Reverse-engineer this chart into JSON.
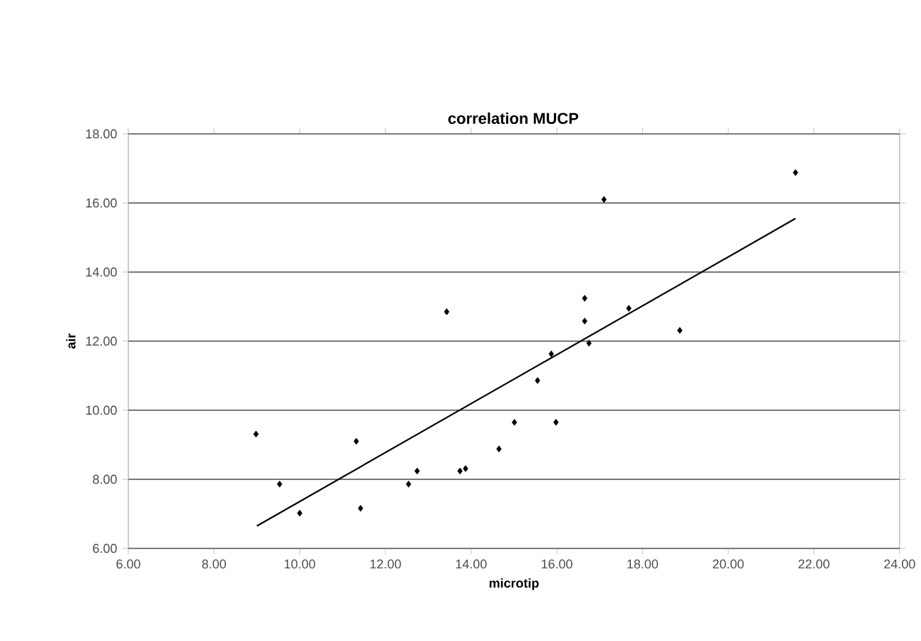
{
  "chart_data": {
    "type": "scatter",
    "title": "correlation MUCP",
    "xlabel": "microtip",
    "ylabel": "air",
    "xlim": [
      6,
      24
    ],
    "xticks": [
      {
        "value": 6,
        "label": "6.00"
      },
      {
        "value": 8,
        "label": "8.00"
      },
      {
        "value": 10,
        "label": "10.00"
      },
      {
        "value": 12,
        "label": "12.00"
      },
      {
        "value": 14,
        "label": "14.00"
      },
      {
        "value": 16,
        "label": "16.00"
      },
      {
        "value": 18,
        "label": "18.00"
      },
      {
        "value": 20,
        "label": "20.00"
      },
      {
        "value": 22,
        "label": "22.00"
      },
      {
        "value": 24,
        "label": "24.00"
      }
    ],
    "ylim": [
      6,
      18
    ],
    "yticks": [
      {
        "value": 6,
        "label": "6.00"
      },
      {
        "value": 8,
        "label": "8.00"
      },
      {
        "value": 10,
        "label": "10.00"
      },
      {
        "value": 12,
        "label": "12.00"
      },
      {
        "value": 14,
        "label": "14.00"
      },
      {
        "value": 16,
        "label": "16.00"
      },
      {
        "value": 18,
        "label": "18.00"
      }
    ],
    "grid": "y",
    "series": [
      {
        "marker": "diamond",
        "color": "#000000",
        "x": [
          8.98,
          9.53,
          10.0,
          11.32,
          11.42,
          12.54,
          12.74,
          13.43,
          13.74,
          13.87,
          14.65,
          15.01,
          15.55,
          15.87,
          15.98,
          16.65,
          16.65,
          16.75,
          17.1,
          17.68,
          18.87,
          21.57
        ],
        "values": [
          9.31,
          7.86,
          7.02,
          9.1,
          7.16,
          7.86,
          8.24,
          12.85,
          8.24,
          8.31,
          8.88,
          9.65,
          10.86,
          11.63,
          9.65,
          13.24,
          12.58,
          11.94,
          16.1,
          12.95,
          12.31,
          16.88
        ]
      },
      {
        "type": "line",
        "marker": "none",
        "color": "#000000",
        "x": [
          9.0,
          21.57
        ],
        "values": [
          6.65,
          15.55
        ]
      }
    ]
  }
}
